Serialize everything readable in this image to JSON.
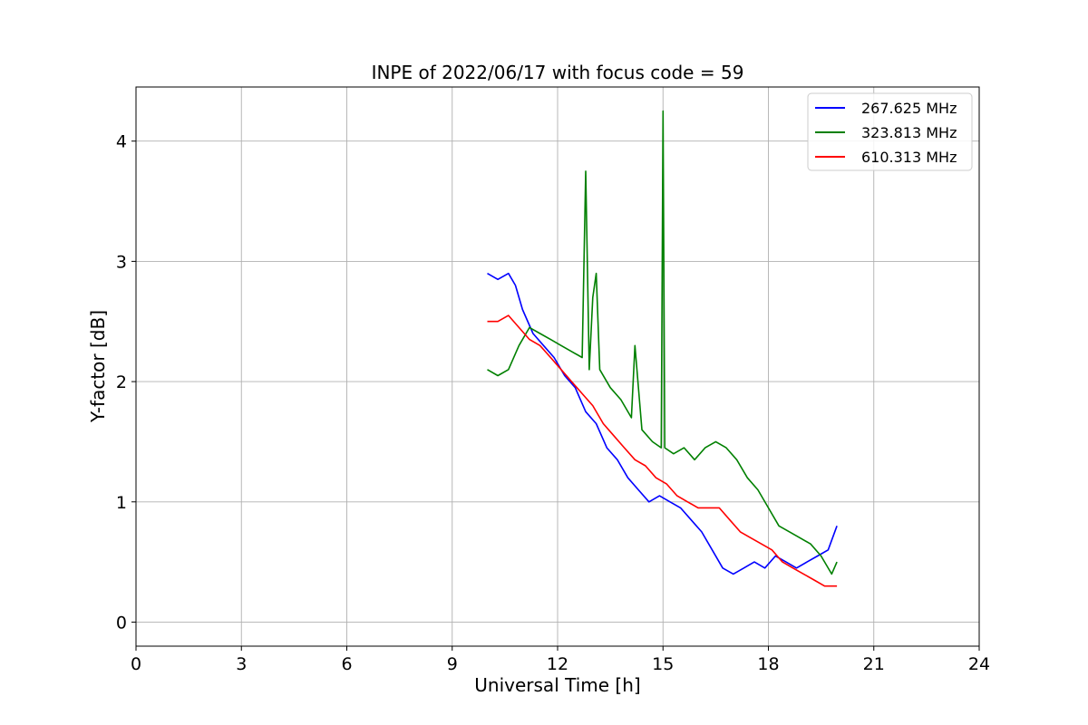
{
  "chart_data": {
    "type": "line",
    "title": "INPE of 2022/06/17 with focus code = 59",
    "xlabel": "Universal Time [h]",
    "ylabel": "Y-factor [dB]",
    "xlim": [
      0,
      24
    ],
    "ylim": [
      -0.2,
      4.45
    ],
    "xticks": [
      0,
      3,
      6,
      9,
      12,
      15,
      18,
      21,
      24
    ],
    "yticks": [
      0,
      1,
      2,
      3,
      4
    ],
    "grid": true,
    "legend_position": "top-right",
    "series": [
      {
        "name": "267.625 MHz",
        "color": "#0000ff",
        "x": [
          10.0,
          10.3,
          10.6,
          10.8,
          11.0,
          11.3,
          11.6,
          11.9,
          12.2,
          12.5,
          12.8,
          13.1,
          13.4,
          13.7,
          14.0,
          14.3,
          14.6,
          14.9,
          15.2,
          15.5,
          15.8,
          16.1,
          16.4,
          16.7,
          17.0,
          17.3,
          17.6,
          17.9,
          18.2,
          18.5,
          18.8,
          19.1,
          19.4,
          19.7,
          19.95
        ],
        "y": [
          2.9,
          2.85,
          2.9,
          2.8,
          2.6,
          2.4,
          2.3,
          2.2,
          2.05,
          1.95,
          1.75,
          1.65,
          1.45,
          1.35,
          1.2,
          1.1,
          1.0,
          1.05,
          1.0,
          0.95,
          0.85,
          0.75,
          0.6,
          0.45,
          0.4,
          0.45,
          0.5,
          0.45,
          0.55,
          0.5,
          0.45,
          0.5,
          0.55,
          0.6,
          0.8
        ]
      },
      {
        "name": "323.813 MHz",
        "color": "#008000",
        "x": [
          10.0,
          10.3,
          10.6,
          10.9,
          11.2,
          11.5,
          11.8,
          12.1,
          12.4,
          12.7,
          12.8,
          12.9,
          13.0,
          13.1,
          13.2,
          13.5,
          13.8,
          14.1,
          14.2,
          14.4,
          14.7,
          14.95,
          15.0,
          15.05,
          15.3,
          15.6,
          15.9,
          16.2,
          16.5,
          16.8,
          17.1,
          17.4,
          17.7,
          18.0,
          18.3,
          18.6,
          18.9,
          19.2,
          19.5,
          19.8,
          19.95
        ],
        "y": [
          2.1,
          2.05,
          2.1,
          2.3,
          2.45,
          2.4,
          2.35,
          2.3,
          2.25,
          2.2,
          3.75,
          2.1,
          2.7,
          2.9,
          2.1,
          1.95,
          1.85,
          1.7,
          2.3,
          1.6,
          1.5,
          1.45,
          4.25,
          1.45,
          1.4,
          1.45,
          1.35,
          1.45,
          1.5,
          1.45,
          1.35,
          1.2,
          1.1,
          0.95,
          0.8,
          0.75,
          0.7,
          0.65,
          0.55,
          0.4,
          0.5
        ]
      },
      {
        "name": "610.313 MHz",
        "color": "#ff0000",
        "x": [
          10.0,
          10.3,
          10.6,
          10.9,
          11.2,
          11.5,
          11.8,
          12.1,
          12.4,
          12.7,
          13.0,
          13.3,
          13.6,
          13.9,
          14.2,
          14.5,
          14.8,
          15.1,
          15.4,
          15.7,
          16.0,
          16.3,
          16.6,
          16.9,
          17.2,
          17.5,
          17.8,
          18.1,
          18.4,
          18.7,
          19.0,
          19.3,
          19.6,
          19.95
        ],
        "y": [
          2.5,
          2.5,
          2.55,
          2.45,
          2.35,
          2.3,
          2.2,
          2.1,
          2.0,
          1.9,
          1.8,
          1.65,
          1.55,
          1.45,
          1.35,
          1.3,
          1.2,
          1.15,
          1.05,
          1.0,
          0.95,
          0.95,
          0.95,
          0.85,
          0.75,
          0.7,
          0.65,
          0.6,
          0.5,
          0.45,
          0.4,
          0.35,
          0.3,
          0.3
        ]
      }
    ]
  }
}
